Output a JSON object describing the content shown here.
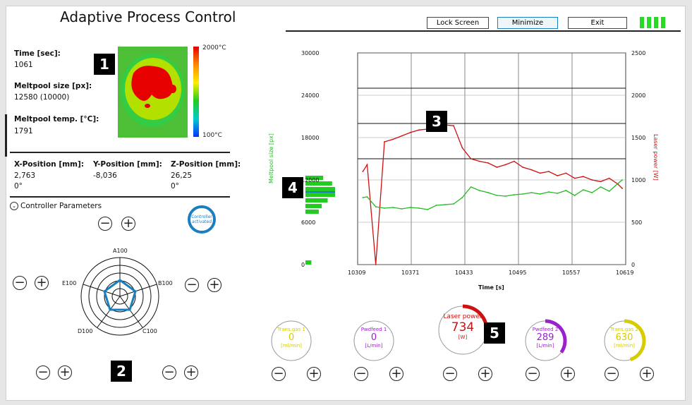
{
  "app_title": "Adaptive Process Control",
  "top_buttons": {
    "lock": "Lock Screen",
    "minimize": "Minimize",
    "exit": "Exit"
  },
  "colors": {
    "status_green": "#22dd22",
    "red": "#cc1111",
    "green": "#22bb22",
    "blue": "#1a7fc0",
    "purple": "#9922cc",
    "yellow": "#d6cc00"
  },
  "readouts": {
    "time_label": "Time [sec]:",
    "time_value": "1061",
    "size_label": "Meltpool size [px]:",
    "size_value": "12580 (10000)",
    "temp_label": "Meltpool temp. [°C]:",
    "temp_value": "1791",
    "scale_max": "2000°C",
    "scale_min": "100°C"
  },
  "positions": {
    "x_label": "X-Position [mm]:",
    "x_value": "2,763",
    "x_angle": "0°",
    "y_label": "Y-Position [mm]:",
    "y_value": "-8,036",
    "z_label": "Z-Position [mm]:",
    "z_value": "26,25",
    "z_angle": "0°"
  },
  "controller": {
    "section_label": "Controller Parameters",
    "status_line1": "Controller",
    "status_line2": "activated",
    "axes": [
      "A100",
      "B100",
      "C100",
      "D100",
      "E100"
    ]
  },
  "markers": [
    "1",
    "2",
    "3",
    "4",
    "5"
  ],
  "chart_data": {
    "type": "line",
    "xlabel": "Time [s]",
    "ylabel_left": "Meltpool size [px]",
    "ylabel_right": "Laser power [W]",
    "x_ticks": [
      "10309",
      "10371",
      "10433",
      "10495",
      "10557",
      "10619"
    ],
    "y_left_ticks": [
      "0",
      "6000",
      "12000",
      "18000",
      "24000",
      "30000"
    ],
    "y_right_ticks": [
      "0",
      "500",
      "1000",
      "1500",
      "2000",
      "2500"
    ],
    "xlim": [
      10309,
      10619
    ],
    "ylim_left": [
      0,
      30000
    ],
    "ylim_right": [
      0,
      2500
    ],
    "setpoint_lines_px": [
      25000,
      20000,
      15000
    ],
    "series": [
      {
        "color": "#cc1111",
        "axis": "right",
        "x": [
          10315,
          10320,
          10330,
          10340,
          10350,
          10360,
          10370,
          10380,
          10390,
          10400,
          10410,
          10420,
          10430,
          10440,
          10450,
          10460,
          10470,
          10480,
          10490,
          10500,
          10510,
          10520,
          10530,
          10540,
          10550,
          10560,
          10570,
          10580,
          10590,
          10600,
          10610,
          10615
        ],
        "y": [
          1100,
          1180,
          0,
          1450,
          1480,
          1520,
          1560,
          1590,
          1600,
          1640,
          1650,
          1640,
          1380,
          1250,
          1220,
          1200,
          1150,
          1180,
          1220,
          1150,
          1120,
          1080,
          1100,
          1050,
          1080,
          1020,
          1040,
          1000,
          980,
          1020,
          950,
          900
        ]
      },
      {
        "color": "#22bb22",
        "axis": "left",
        "x": [
          10315,
          10320,
          10330,
          10340,
          10350,
          10360,
          10370,
          10380,
          10390,
          10400,
          10410,
          10420,
          10430,
          10440,
          10450,
          10460,
          10470,
          10480,
          10490,
          10500,
          10510,
          10520,
          10530,
          10540,
          10550,
          10560,
          10570,
          10580,
          10590,
          10600,
          10610,
          10615
        ],
        "y": [
          9500,
          9600,
          8200,
          8000,
          8100,
          7900,
          8100,
          8000,
          7800,
          8400,
          8500,
          8600,
          9500,
          11000,
          10500,
          10200,
          9800,
          9700,
          9900,
          10000,
          10200,
          10000,
          10300,
          10100,
          10500,
          9800,
          10600,
          10200,
          11000,
          10400,
          11500,
          12000
        ]
      }
    ],
    "histogram": [
      {
        "y": 12300,
        "count": 0.6
      },
      {
        "y": 11500,
        "count": 0.9
      },
      {
        "y": 10700,
        "count": 1.0
      },
      {
        "y": 9900,
        "count": 1.0
      },
      {
        "y": 9100,
        "count": 0.75
      },
      {
        "y": 8300,
        "count": 0.55
      },
      {
        "y": 7500,
        "count": 0.45
      },
      {
        "y": 300,
        "count": 0.2
      }
    ]
  },
  "gauges": [
    {
      "id": "trans-gas-1",
      "title": "Trans.gas 1",
      "value": "0",
      "unit": "[ml/min]",
      "color": "#d6cc00",
      "fill": 0.0
    },
    {
      "id": "pwdfeed-1",
      "title": "Pwdfeed 1",
      "value": "0",
      "unit": "[L/min]",
      "color": "#9922cc",
      "fill": 0.0
    },
    {
      "id": "laser-power",
      "title": "Laser power",
      "value": "734",
      "unit": "[W]",
      "color": "#cc1111",
      "fill": 0.3
    },
    {
      "id": "pwdfeed-2",
      "title": "Pwdfeed 2",
      "value": "289",
      "unit": "[L/min]",
      "color": "#9922cc",
      "fill": 0.35
    },
    {
      "id": "trans-gas-2",
      "title": "Trans.gas 2",
      "value": "630",
      "unit": "[ml/min]",
      "color": "#d6cc00",
      "fill": 0.45
    }
  ],
  "symbols": {
    "minus": "−",
    "plus": "+"
  }
}
